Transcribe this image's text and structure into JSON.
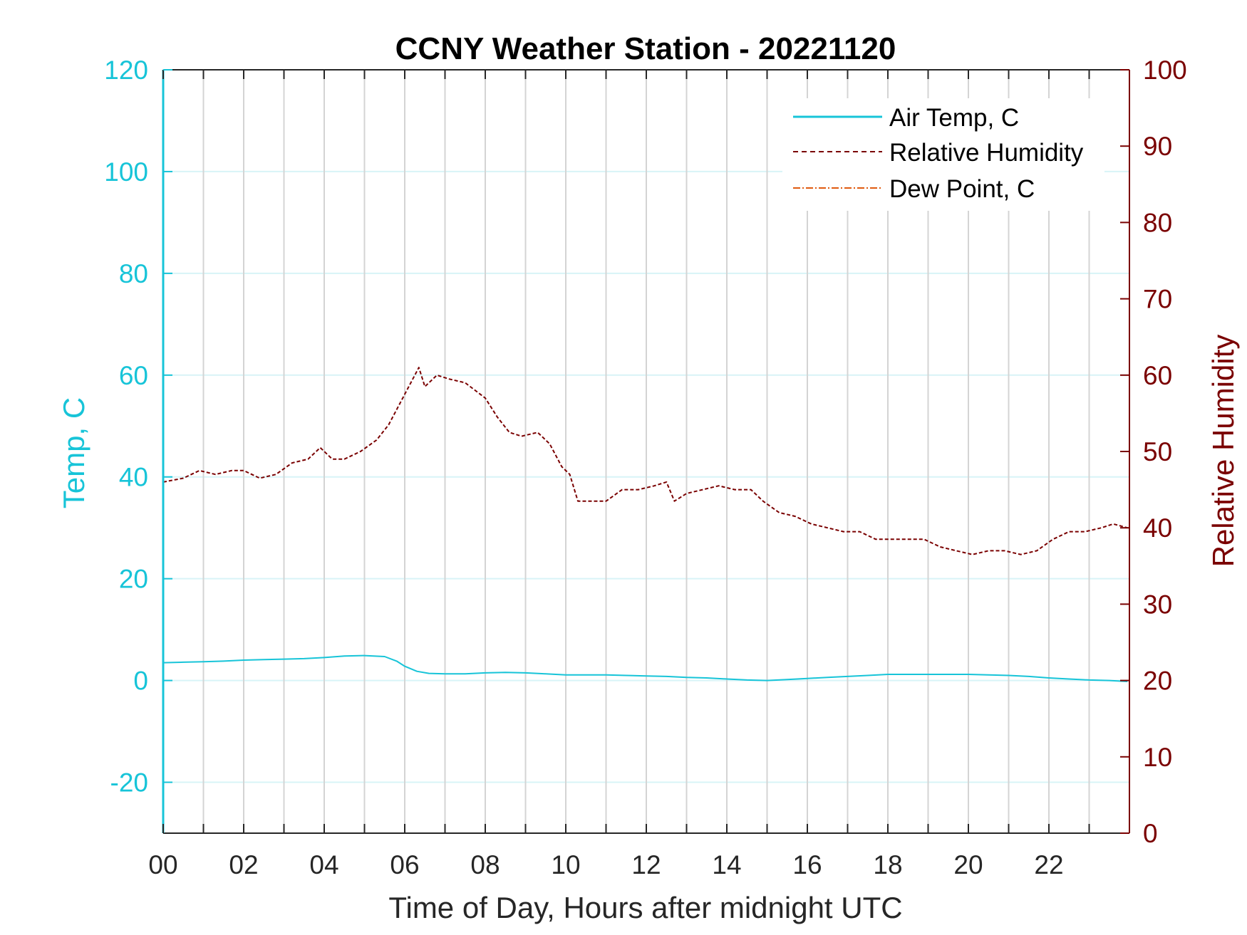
{
  "chart_data": {
    "type": "line",
    "title": "CCNY Weather Station - 20221120",
    "xlabel": "Time of Day, Hours after midnight UTC",
    "ylabel_left": "Temp, C",
    "ylabel_right": "Relative Humidity",
    "xlim": [
      0,
      24
    ],
    "ylim_left": [
      -30,
      120
    ],
    "ylim_right": [
      0,
      100
    ],
    "x_ticks": [
      0,
      2,
      4,
      6,
      8,
      10,
      12,
      14,
      16,
      18,
      20,
      22
    ],
    "x_tick_labels": [
      "00",
      "02",
      "04",
      "06",
      "08",
      "10",
      "12",
      "14",
      "16",
      "18",
      "20",
      "22"
    ],
    "y_left_ticks": [
      -20,
      0,
      20,
      40,
      60,
      80,
      100,
      120
    ],
    "y_left_tick_labels": [
      "-20",
      "0",
      "20",
      "40",
      "60",
      "80",
      "100",
      "120"
    ],
    "y_right_ticks": [
      0,
      10,
      20,
      30,
      40,
      50,
      60,
      70,
      80,
      90,
      100
    ],
    "y_right_tick_labels": [
      "0",
      "10",
      "20",
      "30",
      "40",
      "50",
      "60",
      "70",
      "80",
      "90",
      "100"
    ],
    "grid": true,
    "legend_position": "top-right",
    "colors": {
      "air_temp": "#17c4d8",
      "humidity": "#7a0000",
      "dew_point": "#e05a10",
      "left_axis": "#17c4d8",
      "right_axis": "#7a0000",
      "vgrid": "#d4d4d4",
      "hgrid": "#d8f4f7"
    },
    "series": [
      {
        "name": "Air Temp, C",
        "axis": "left",
        "style": "solid",
        "x": [
          0,
          0.5,
          1,
          1.5,
          2,
          2.5,
          3,
          3.5,
          4,
          4.5,
          5,
          5.5,
          5.8,
          6,
          6.3,
          6.6,
          7,
          7.5,
          8,
          8.5,
          9,
          9.5,
          10,
          10.5,
          11,
          11.5,
          12,
          12.5,
          13,
          13.5,
          14,
          14.5,
          15,
          15.5,
          16,
          16.5,
          17,
          17.5,
          18,
          18.5,
          19,
          19.5,
          20,
          20.5,
          21,
          21.5,
          22,
          22.5,
          23,
          23.5,
          23.95
        ],
        "y": [
          3.5,
          3.6,
          3.7,
          3.8,
          4.0,
          4.1,
          4.2,
          4.3,
          4.5,
          4.8,
          4.9,
          4.7,
          3.8,
          2.8,
          1.8,
          1.4,
          1.3,
          1.3,
          1.5,
          1.6,
          1.5,
          1.3,
          1.1,
          1.1,
          1.1,
          1.0,
          0.9,
          0.8,
          0.6,
          0.5,
          0.3,
          0.1,
          0.0,
          0.2,
          0.4,
          0.6,
          0.8,
          1.0,
          1.2,
          1.2,
          1.2,
          1.2,
          1.2,
          1.1,
          1.0,
          0.8,
          0.5,
          0.3,
          0.1,
          0.0,
          -0.2
        ]
      },
      {
        "name": "Relative Humidity",
        "axis": "right",
        "style": "dashed",
        "x": [
          0,
          0.5,
          0.9,
          1.3,
          1.7,
          2.0,
          2.4,
          2.8,
          3.2,
          3.6,
          3.9,
          4.2,
          4.5,
          4.9,
          5.3,
          5.6,
          5.9,
          6.2,
          6.35,
          6.5,
          6.8,
          7.1,
          7.5,
          8.0,
          8.3,
          8.6,
          8.9,
          9.3,
          9.6,
          9.9,
          10.1,
          10.3,
          10.7,
          11.0,
          11.4,
          11.8,
          12.2,
          12.5,
          12.7,
          13.0,
          13.4,
          13.8,
          14.2,
          14.6,
          14.9,
          15.3,
          15.7,
          16.1,
          16.5,
          16.9,
          17.3,
          17.7,
          18.1,
          18.5,
          18.9,
          19.3,
          19.7,
          20.1,
          20.5,
          20.9,
          21.3,
          21.7,
          22.1,
          22.5,
          22.9,
          23.3,
          23.6,
          23.95
        ],
        "y": [
          46.0,
          46.5,
          47.5,
          47.0,
          47.5,
          47.5,
          46.5,
          47.0,
          48.5,
          49.0,
          50.5,
          49.0,
          49.0,
          50.0,
          51.5,
          53.5,
          56.5,
          59.5,
          61.0,
          58.5,
          60.0,
          59.5,
          59.0,
          57.0,
          54.5,
          52.5,
          52.0,
          52.5,
          51.0,
          48.0,
          47.0,
          43.5,
          43.5,
          43.5,
          45.0,
          45.0,
          45.5,
          46.0,
          43.5,
          44.5,
          45.0,
          45.5,
          45.0,
          45.0,
          43.5,
          42.0,
          41.5,
          40.5,
          40.0,
          39.5,
          39.5,
          38.5,
          38.5,
          38.5,
          38.5,
          37.5,
          37.0,
          36.5,
          37.0,
          37.0,
          36.5,
          37.0,
          38.5,
          39.5,
          39.5,
          40.0,
          40.5,
          40.0
        ]
      },
      {
        "name": "Dew Point, C",
        "axis": "left",
        "style": "dash-dot",
        "x": [],
        "y": []
      }
    ]
  }
}
